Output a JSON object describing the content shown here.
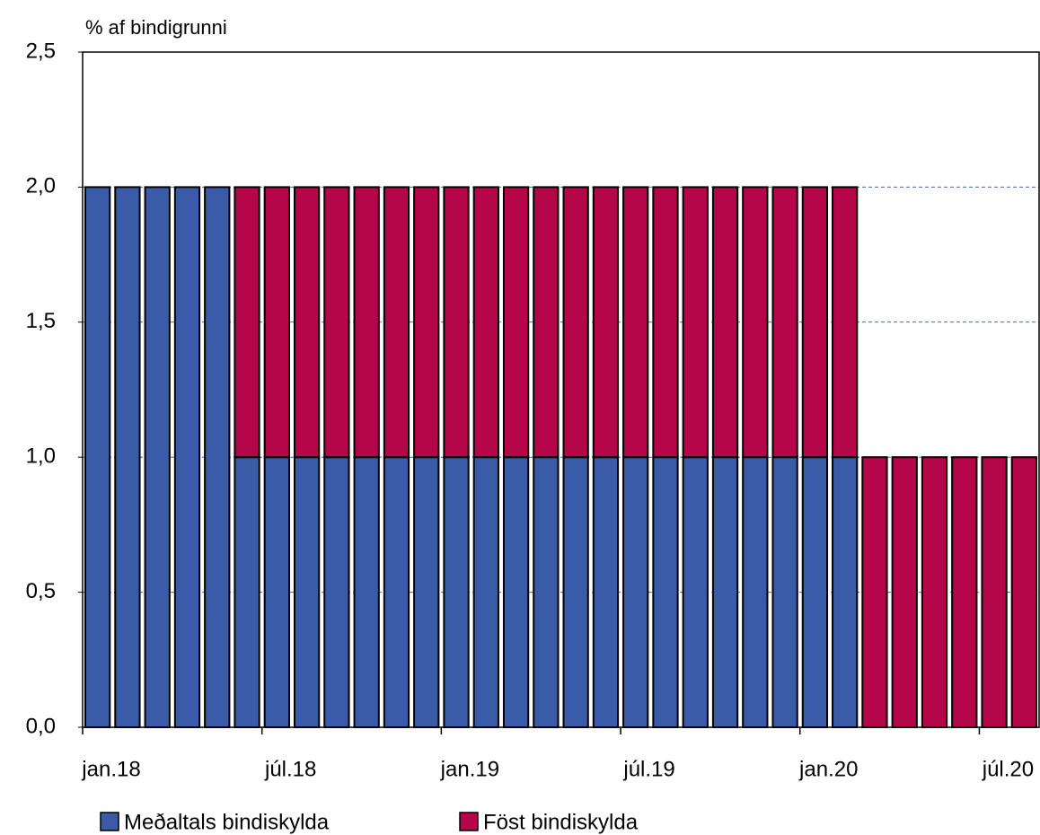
{
  "chart_data": {
    "type": "stacked-bar",
    "y_axis_label": "% af bindigrunni",
    "categories": [
      "jan.18",
      null,
      null,
      null,
      null,
      null,
      "júl.18",
      null,
      null,
      null,
      null,
      null,
      "jan.19",
      null,
      null,
      null,
      null,
      null,
      "júl.19",
      null,
      null,
      null,
      null,
      null,
      "jan.20",
      null,
      null,
      null,
      null,
      null,
      "júl.20",
      null
    ],
    "series": [
      {
        "name": "Meðaltals bindiskylda",
        "color": "#3a5ba8",
        "values": [
          2,
          2,
          2,
          2,
          2,
          1,
          1,
          1,
          1,
          1,
          1,
          1,
          1,
          1,
          1,
          1,
          1,
          1,
          1,
          1,
          1,
          1,
          1,
          1,
          1,
          1,
          0,
          0,
          0,
          0,
          0,
          0
        ]
      },
      {
        "name": "Föst bindiskylda",
        "color": "#b5064a",
        "values": [
          0,
          0,
          0,
          0,
          0,
          1,
          1,
          1,
          1,
          1,
          1,
          1,
          1,
          1,
          1,
          1,
          1,
          1,
          1,
          1,
          1,
          1,
          1,
          1,
          1,
          1,
          1,
          1,
          1,
          1,
          1,
          1
        ]
      }
    ],
    "ylim": [
      0,
      2.5
    ],
    "yticks": [
      {
        "value": 0,
        "label": "0,0"
      },
      {
        "value": 0.5,
        "label": "0,5"
      },
      {
        "value": 1,
        "label": "1,0"
      },
      {
        "value": 1.5,
        "label": "1,5"
      },
      {
        "value": 2,
        "label": "2,0"
      },
      {
        "value": 2.5,
        "label": "2,5"
      }
    ],
    "grid": true
  }
}
